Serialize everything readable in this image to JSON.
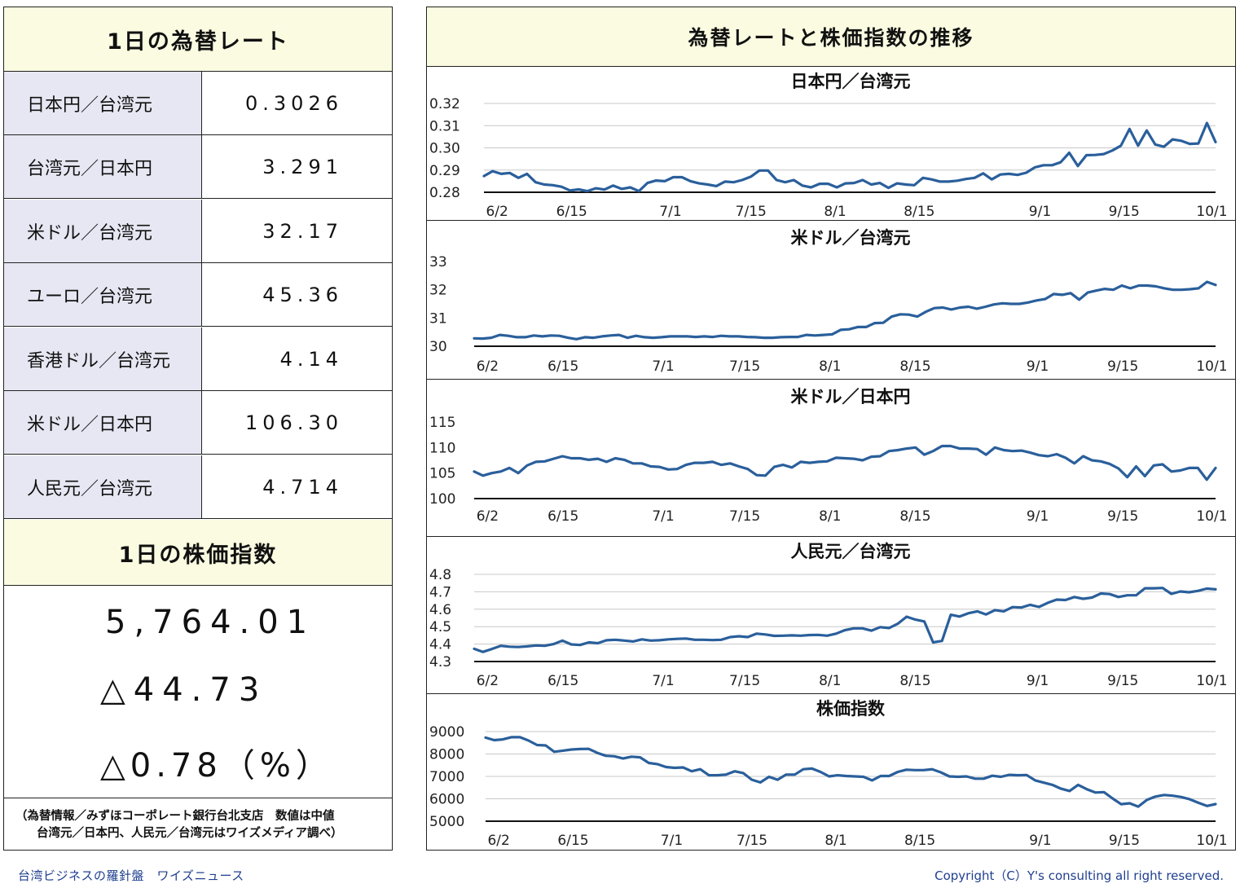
{
  "left": {
    "rates_title": "1日の為替レート",
    "rates": [
      {
        "label": "日本円／台湾元",
        "value": "0.3026"
      },
      {
        "label": "台湾元／日本円",
        "value": "3.291"
      },
      {
        "label": "米ドル／台湾元",
        "value": "32.17"
      },
      {
        "label": "ユーロ／台湾元",
        "value": "45.36"
      },
      {
        "label": "香港ドル／台湾元",
        "value": "4.14"
      },
      {
        "label": "米ドル／日本円",
        "value": "106.30"
      },
      {
        "label": "人民元／台湾元",
        "value": "4.714"
      }
    ],
    "index_title": "1日の株価指数",
    "index_value": "5,764.01",
    "index_change": "△44.73",
    "index_change_pct": "△0.78（%）",
    "note_line1": "（為替情報／みずほコーポレート銀行台北支店　数値は中値",
    "note_line2": "台湾元／日本円、人民元／台湾元はワイズメディア調べ）"
  },
  "right_title": "為替レートと株価指数の推移",
  "footer": {
    "left": "台湾ビジネスの羅針盤　ワイズニュース",
    "right": "Copyright（C）Y's consulting all right reserved."
  },
  "colors": {
    "line": "#2a5f9b",
    "header_bg": "#fbfbe1",
    "label_bg": "#e7e7f3",
    "footer_text": "#1f3f8f"
  },
  "chart_data": [
    {
      "type": "line",
      "title": "日本円／台湾元",
      "x_tick_labels": [
        "6/2",
        "6/15",
        "7/1",
        "7/15",
        "8/1",
        "8/15",
        "9/1",
        "9/15",
        "10/1"
      ],
      "y_tick_labels": [
        "0.32",
        "0.31",
        "0.30",
        "0.29",
        "0.28"
      ],
      "ylim": [
        0.28,
        0.32
      ],
      "grid": true,
      "series": [
        {
          "values": [
            0.2873,
            0.2895,
            0.2883,
            0.2887,
            0.2865,
            0.2883,
            0.2845,
            0.2835,
            0.2832,
            0.2825,
            0.2808,
            0.2813,
            0.2805,
            0.2818,
            0.2812,
            0.283,
            0.2815,
            0.2822,
            0.2805,
            0.2842,
            0.2853,
            0.285,
            0.2868,
            0.2868,
            0.285,
            0.284,
            0.2835,
            0.2828,
            0.2848,
            0.2845,
            0.2855,
            0.287,
            0.2898,
            0.2898,
            0.2855,
            0.2845,
            0.2855,
            0.283,
            0.2822,
            0.2838,
            0.2838,
            0.2822,
            0.284,
            0.2842,
            0.2855,
            0.2835,
            0.2842,
            0.282,
            0.284,
            0.2835,
            0.2832,
            0.2865,
            0.2858,
            0.2848,
            0.2848,
            0.2852,
            0.286,
            0.2865,
            0.2885,
            0.2858,
            0.288,
            0.2883,
            0.2878,
            0.2888,
            0.2912,
            0.2922,
            0.2922,
            0.2935,
            0.2978,
            0.2918,
            0.2967,
            0.2968,
            0.2972,
            0.2988,
            0.301,
            0.3085,
            0.301,
            0.3078,
            0.3015,
            0.3005,
            0.3038,
            0.3032,
            0.3018,
            0.302,
            0.3112,
            0.3026
          ]
        }
      ]
    },
    {
      "type": "line",
      "title": "米ドル／台湾元",
      "x_tick_labels": [
        "6/2",
        "6/15",
        "7/1",
        "7/15",
        "8/1",
        "8/15",
        "9/1",
        "9/15",
        "10/1"
      ],
      "y_tick_labels": [
        "33",
        "32",
        "31",
        "30"
      ],
      "ylim": [
        30,
        33
      ],
      "grid": false,
      "series": [
        {
          "values": [
            30.28,
            30.27,
            30.3,
            30.4,
            30.37,
            30.32,
            30.32,
            30.38,
            30.35,
            30.38,
            30.37,
            30.3,
            30.25,
            30.32,
            30.3,
            30.35,
            30.38,
            30.4,
            30.3,
            30.37,
            30.32,
            30.3,
            30.32,
            30.35,
            30.35,
            30.35,
            30.33,
            30.35,
            30.33,
            30.37,
            30.35,
            30.35,
            30.33,
            30.32,
            30.3,
            30.3,
            30.32,
            30.33,
            30.33,
            30.4,
            30.38,
            30.4,
            30.42,
            30.58,
            30.6,
            30.68,
            30.68,
            30.82,
            30.83,
            31.05,
            31.13,
            31.12,
            31.05,
            31.22,
            31.35,
            31.37,
            31.3,
            31.37,
            31.4,
            31.33,
            31.4,
            31.48,
            31.52,
            31.5,
            31.5,
            31.55,
            31.62,
            31.67,
            31.85,
            31.82,
            31.88,
            31.65,
            31.9,
            31.97,
            32.03,
            32.0,
            32.15,
            32.05,
            32.15,
            32.15,
            32.12,
            32.05,
            32.0,
            32.0,
            32.02,
            32.05,
            32.28,
            32.17
          ]
        }
      ]
    },
    {
      "type": "line",
      "title": "米ドル／日本円",
      "x_tick_labels": [
        "6/2",
        "6/15",
        "7/1",
        "7/15",
        "8/1",
        "8/15",
        "9/1",
        "9/15",
        "10/1"
      ],
      "y_tick_labels": [
        "115",
        "110",
        "105",
        "100"
      ],
      "ylim": [
        100,
        115
      ],
      "grid": false,
      "series": [
        {
          "values": [
            105.3,
            104.5,
            105.0,
            105.3,
            106.0,
            105.0,
            106.5,
            107.2,
            107.3,
            107.8,
            108.3,
            107.9,
            107.9,
            107.6,
            107.8,
            107.2,
            107.9,
            107.6,
            106.9,
            106.9,
            106.3,
            106.2,
            105.7,
            105.8,
            106.6,
            107.0,
            107.0,
            107.2,
            106.6,
            106.9,
            106.3,
            105.8,
            104.6,
            104.5,
            106.2,
            106.6,
            106.1,
            107.2,
            107.0,
            107.2,
            107.3,
            108.0,
            107.9,
            107.8,
            107.5,
            108.2,
            108.3,
            109.3,
            109.5,
            109.8,
            110.0,
            108.6,
            109.3,
            110.3,
            110.3,
            109.8,
            109.8,
            109.7,
            108.6,
            110.0,
            109.5,
            109.3,
            109.4,
            109.0,
            108.5,
            108.3,
            108.7,
            108.0,
            106.9,
            108.3,
            107.5,
            107.3,
            106.8,
            105.9,
            104.2,
            106.3,
            104.4,
            106.5,
            106.7,
            105.3,
            105.5,
            106.0,
            106.0,
            103.7,
            106.0
          ]
        }
      ]
    },
    {
      "type": "line",
      "title": "人民元／台湾元",
      "x_tick_labels": [
        "6/2",
        "6/15",
        "7/1",
        "7/15",
        "8/1",
        "8/15",
        "9/1",
        "9/15",
        "10/1"
      ],
      "y_tick_labels": [
        "4.8",
        "4.7",
        "4.6",
        "4.5",
        "4.4",
        "4.3"
      ],
      "ylim": [
        4.3,
        4.8
      ],
      "grid": true,
      "series": [
        {
          "values": [
            4.373,
            4.355,
            4.372,
            4.39,
            4.385,
            4.383,
            4.387,
            4.392,
            4.39,
            4.4,
            4.42,
            4.398,
            4.395,
            4.41,
            4.405,
            4.422,
            4.425,
            4.42,
            4.415,
            4.427,
            4.42,
            4.422,
            4.427,
            4.43,
            4.432,
            4.425,
            4.425,
            4.423,
            4.425,
            4.44,
            4.445,
            4.44,
            4.46,
            4.455,
            4.447,
            4.448,
            4.45,
            4.448,
            4.452,
            4.453,
            4.448,
            4.46,
            4.48,
            4.49,
            4.49,
            4.477,
            4.497,
            4.492,
            4.517,
            4.557,
            4.54,
            4.53,
            4.41,
            4.418,
            4.568,
            4.558,
            4.577,
            4.588,
            4.57,
            4.595,
            4.588,
            4.612,
            4.61,
            4.625,
            4.613,
            4.637,
            4.655,
            4.653,
            4.67,
            4.66,
            4.667,
            4.69,
            4.687,
            4.67,
            4.68,
            4.68,
            4.72,
            4.72,
            4.722,
            4.688,
            4.702,
            4.697,
            4.705,
            4.718,
            4.714
          ]
        }
      ]
    },
    {
      "type": "line",
      "title": "株価指数",
      "x_tick_labels": [
        "6/2",
        "6/15",
        "7/1",
        "7/15",
        "8/1",
        "8/15",
        "9/1",
        "9/15",
        "10/1"
      ],
      "y_tick_labels": [
        "9000",
        "8000",
        "7000",
        "6000",
        "5000"
      ],
      "ylim": [
        5000,
        9000
      ],
      "grid": true,
      "series": [
        {
          "values": [
            8730,
            8620,
            8650,
            8750,
            8750,
            8600,
            8400,
            8380,
            8100,
            8150,
            8200,
            8220,
            8230,
            8050,
            7920,
            7900,
            7800,
            7880,
            7850,
            7600,
            7550,
            7420,
            7380,
            7400,
            7230,
            7320,
            7050,
            7050,
            7080,
            7230,
            7150,
            6850,
            6730,
            6980,
            6850,
            7080,
            7080,
            7320,
            7350,
            7200,
            7000,
            7050,
            7020,
            7000,
            6980,
            6820,
            7020,
            7020,
            7200,
            7300,
            7280,
            7280,
            7320,
            7180,
            7000,
            6980,
            7000,
            6900,
            6900,
            7030,
            6980,
            7070,
            7050,
            7060,
            6820,
            6720,
            6620,
            6450,
            6350,
            6620,
            6430,
            6280,
            6300,
            6020,
            5760,
            5800,
            5650,
            5950,
            6100,
            6170,
            6140,
            6080,
            5980,
            5820,
            5680,
            5764
          ]
        }
      ]
    }
  ]
}
